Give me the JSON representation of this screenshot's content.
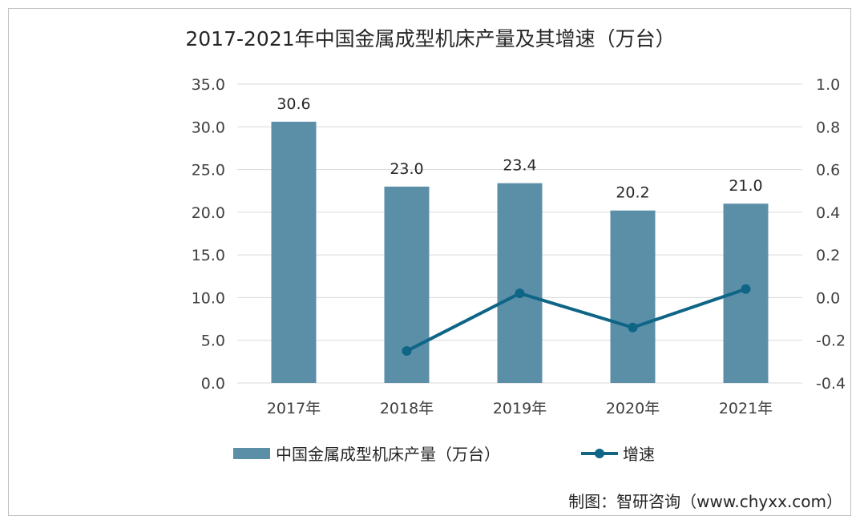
{
  "chart_data": {
    "type": "bar",
    "title": "2017-2021年中国金属成型机床产量及其增速（万台）",
    "categories": [
      "2017年",
      "2018年",
      "2019年",
      "2020年",
      "2021年"
    ],
    "series": [
      {
        "name": "中国金属成型机床产量（万台）",
        "type": "bar",
        "axis": "left",
        "color": "#5b8fa8",
        "values": [
          30.6,
          23.0,
          23.4,
          20.2,
          21.0
        ],
        "labels": [
          "30.6",
          "23.0",
          "23.4",
          "20.2",
          "21.0"
        ]
      },
      {
        "name": "增速",
        "type": "line",
        "axis": "right",
        "color": "#0e6586",
        "values": [
          null,
          -0.25,
          0.02,
          -0.14,
          0.04
        ]
      }
    ],
    "y_left": {
      "min": 0,
      "max": 35,
      "step": 5,
      "tick_labels": [
        "0.0",
        "5.0",
        "10.0",
        "15.0",
        "20.0",
        "25.0",
        "30.0",
        "35.0"
      ]
    },
    "y_right": {
      "min": -0.4,
      "max": 1.0,
      "step": 0.2,
      "tick_labels": [
        "-0.4",
        "-0.2",
        "0.0",
        "0.2",
        "0.4",
        "0.6",
        "0.8",
        "1.0"
      ]
    },
    "grid": true,
    "legend": "bottom"
  },
  "source": "制图：智研咨询（www.chyxx.com）"
}
